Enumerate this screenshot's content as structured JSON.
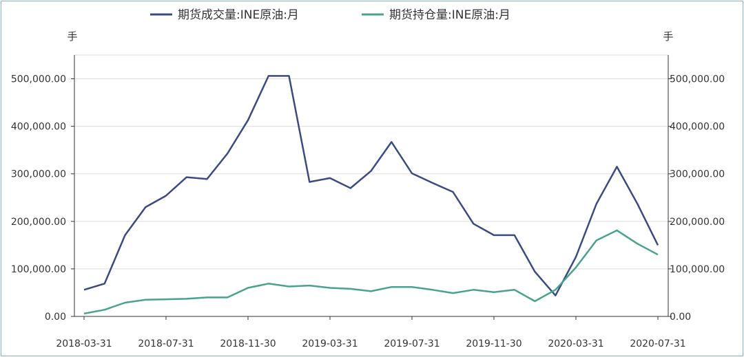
{
  "chart_data": {
    "type": "line",
    "x": [
      "2018-03-31",
      "2018-04-30",
      "2018-05-31",
      "2018-06-30",
      "2018-07-31",
      "2018-08-31",
      "2018-09-30",
      "2018-10-31",
      "2018-11-30",
      "2018-12-31",
      "2019-01-31",
      "2019-02-28",
      "2019-03-31",
      "2019-04-30",
      "2019-05-31",
      "2019-06-30",
      "2019-07-31",
      "2019-08-31",
      "2019-09-30",
      "2019-10-31",
      "2019-11-30",
      "2019-12-31",
      "2020-01-31",
      "2020-02-29",
      "2020-03-31",
      "2020-04-30",
      "2020-05-31",
      "2020-06-30",
      "2020-07-31"
    ],
    "x_tick_labels": [
      "2018-03-31",
      "2018-07-31",
      "2018-11-30",
      "2019-03-31",
      "2019-07-31",
      "2019-11-30",
      "2020-03-31",
      "2020-07-31"
    ],
    "series": [
      {
        "name": "期货成交量:INE原油:月",
        "color": "#3b4a80",
        "values": [
          56000,
          69000,
          171000,
          230000,
          254000,
          293000,
          289000,
          343000,
          413000,
          506000,
          506000,
          283000,
          291000,
          270000,
          306000,
          367000,
          301000,
          281000,
          262000,
          195000,
          171000,
          171000,
          94000,
          44000,
          125000,
          237000,
          315000,
          237000,
          150000
        ]
      },
      {
        "name": "期货持仓量:INE原油:月",
        "color": "#48a28e",
        "values": [
          6000,
          14000,
          29000,
          35000,
          36000,
          37000,
          40000,
          40000,
          60000,
          69000,
          63000,
          65000,
          60000,
          58000,
          53000,
          62000,
          62000,
          56000,
          49000,
          56000,
          51000,
          56000,
          32000,
          56000,
          103000,
          160000,
          181000,
          153000,
          130000
        ]
      }
    ],
    "y_unit_left": "手",
    "y_unit_right": "手",
    "ylim": [
      0,
      550000
    ],
    "y_ticks": [
      0,
      100000,
      200000,
      300000,
      400000,
      500000
    ],
    "y_tick_labels": [
      "0.00",
      "100,000.00",
      "200,000.00",
      "300,000.00",
      "400,000.00",
      "500,000.00"
    ],
    "grid": true,
    "legend_position": "top"
  }
}
